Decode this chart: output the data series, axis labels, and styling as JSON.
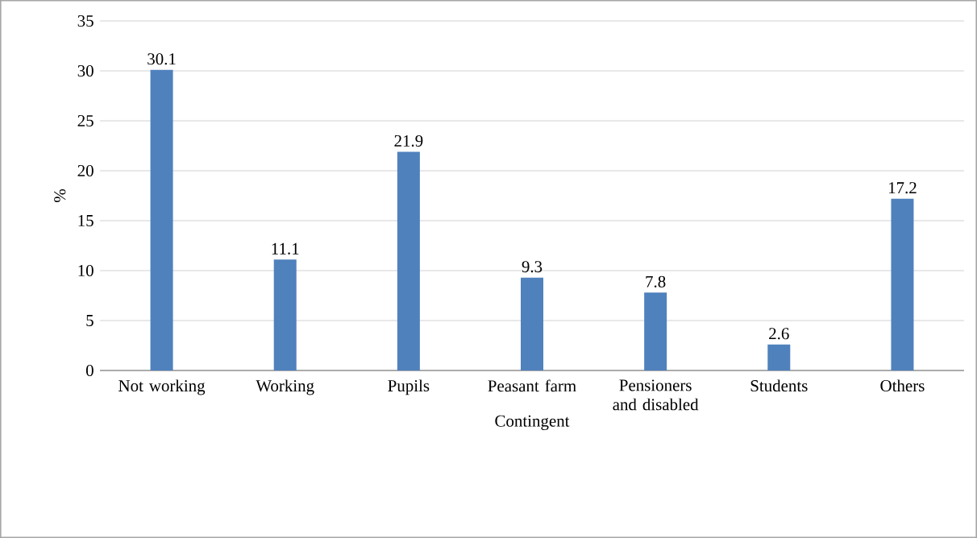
{
  "chart_data": {
    "type": "bar",
    "xlabel": "Contingent",
    "ylabel": "%",
    "categories": [
      "Not working",
      "Working",
      "Pupils",
      "Peasant farm",
      "Pensioners and disabled",
      "Students",
      "Others"
    ],
    "values": [
      30.1,
      11.1,
      21.9,
      9.3,
      7.8,
      2.6,
      17.2
    ],
    "color": "#4f81bd",
    "ylim": [
      0,
      35
    ],
    "yticks": [
      0,
      5,
      10,
      15,
      20,
      25,
      30,
      35
    ],
    "grid": "y",
    "data_labels": true
  }
}
